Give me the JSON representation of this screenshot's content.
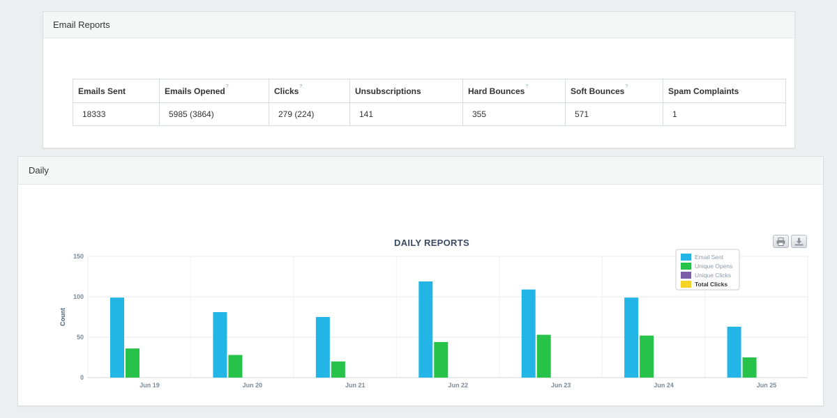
{
  "email_reports": {
    "title": "Email Reports",
    "columns": [
      "Emails Sent",
      "Emails Opened",
      "Clicks",
      "Unsubscriptions",
      "Hard Bounces",
      "Soft Bounces",
      "Spam Complaints"
    ],
    "tip_marker": "?",
    "values": [
      "18333",
      "5985 (3864)",
      "279 (224)",
      "141",
      "355",
      "571",
      "1"
    ]
  },
  "daily": {
    "title": "Daily",
    "print_icon": "print-icon",
    "download_icon": "download-icon"
  },
  "colors": {
    "email_sent": "#22b5e6",
    "unique_opens": "#26c24a",
    "unique_clicks": "#7b5ea7",
    "total_clicks": "#f5d329"
  },
  "chart_data": {
    "type": "bar",
    "title": "DAILY REPORTS",
    "ylabel": "Count",
    "xlabel": "",
    "ylim": [
      0,
      150
    ],
    "yticks": [
      0,
      50,
      100,
      150
    ],
    "grid": true,
    "legend_position": "top-right",
    "categories": [
      "Jun 19",
      "Jun 20",
      "Jun 21",
      "Jun 22",
      "Jun 23",
      "Jun 24",
      "Jun 25"
    ],
    "series": [
      {
        "name": "Email Sent",
        "values": [
          99,
          81,
          75,
          119,
          109,
          99,
          63
        ]
      },
      {
        "name": "Unique Opens",
        "values": [
          36,
          28,
          20,
          44,
          53,
          52,
          25
        ]
      },
      {
        "name": "Unique Clicks",
        "values": [
          0,
          0,
          0,
          0,
          0,
          0,
          0
        ]
      },
      {
        "name": "Total Clicks",
        "values": [
          0,
          0,
          0,
          0,
          0,
          0,
          0
        ]
      }
    ]
  }
}
